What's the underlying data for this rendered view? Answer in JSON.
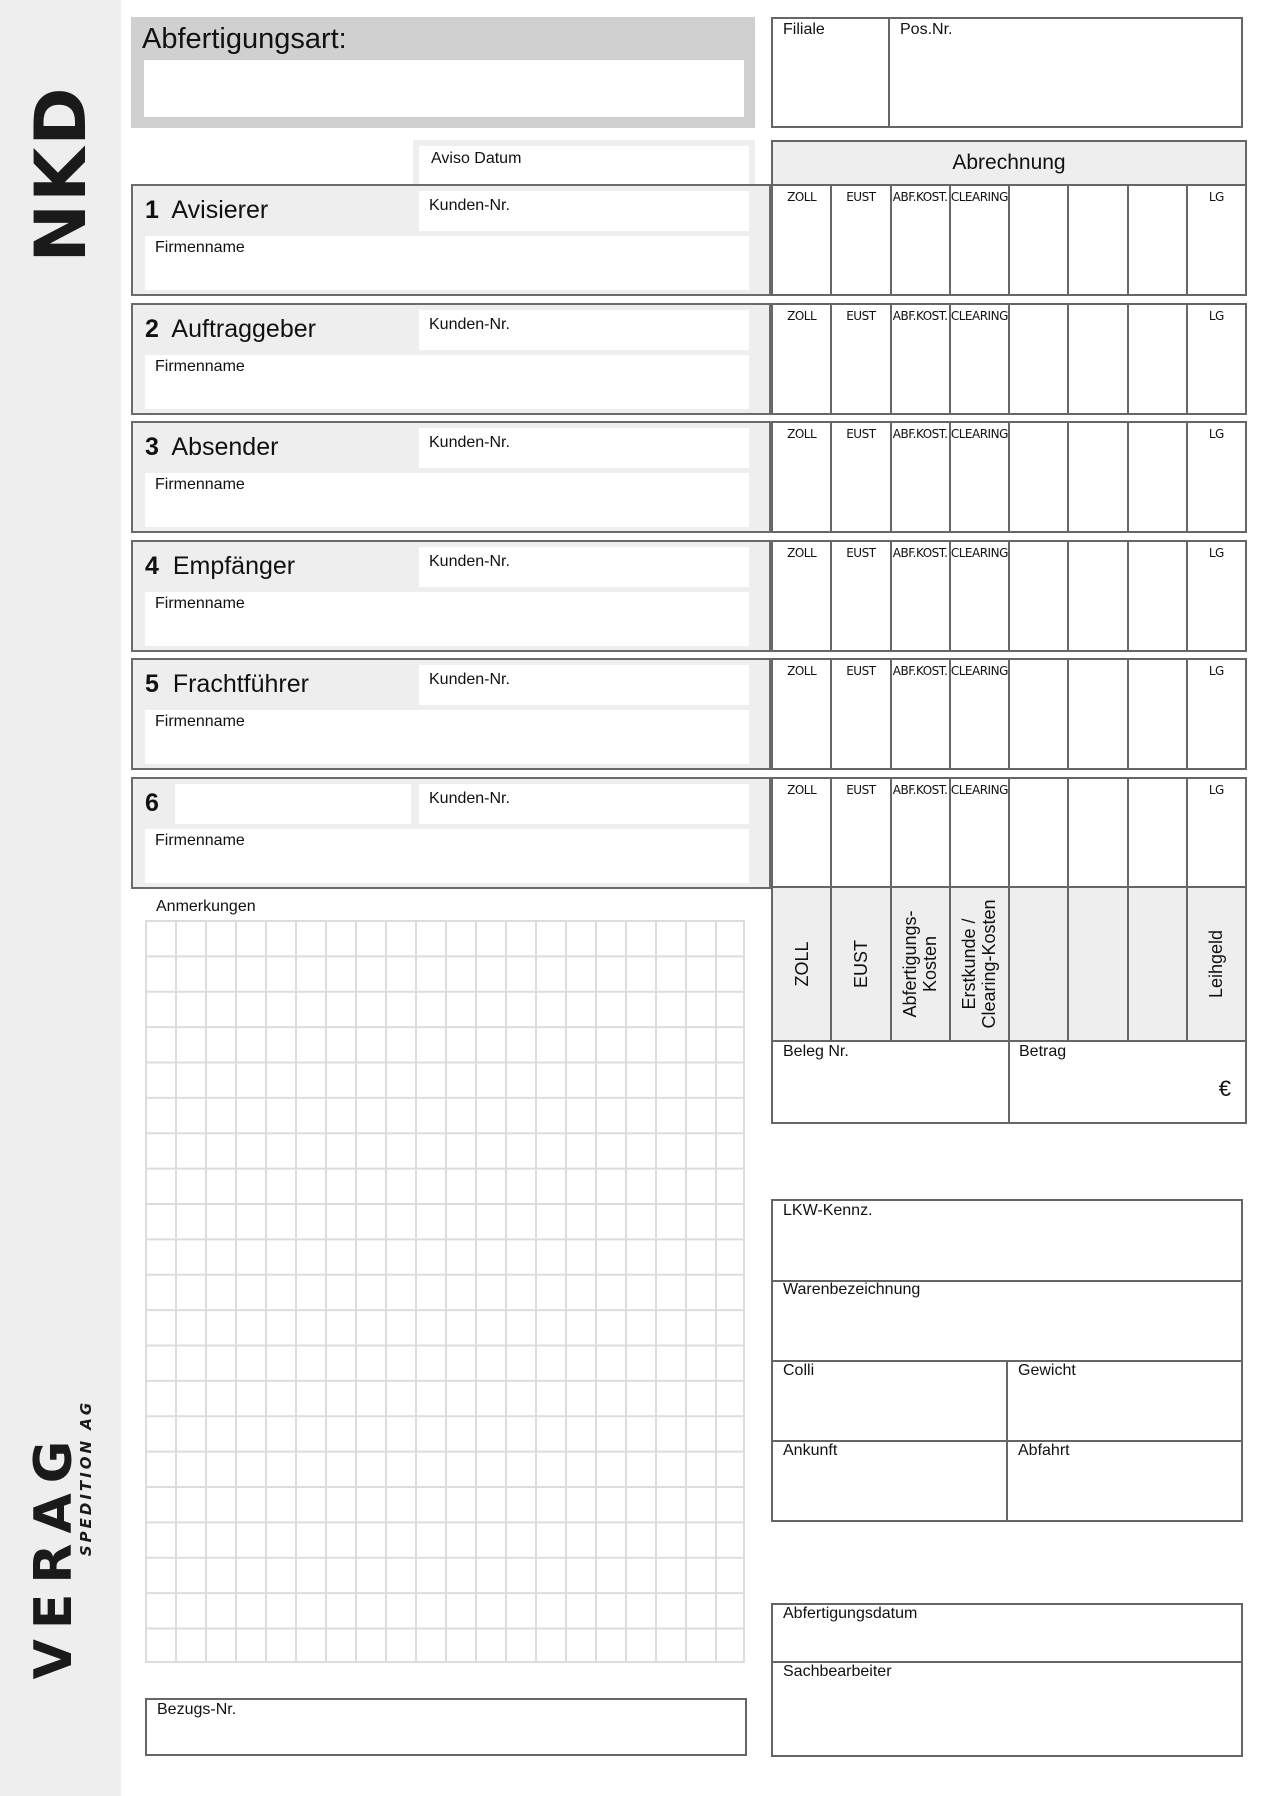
{
  "branding": {
    "nkd_logo": "NKD",
    "verag_logo": "VERAG",
    "verag_sub": "SPEDITION AG"
  },
  "header": {
    "abfertigungsart_label": "Abfertigungsart:",
    "abfertigungsart_value": "",
    "filiale_label": "Filiale",
    "posnr_label": "Pos.Nr.",
    "aviso_label": "Aviso Datum"
  },
  "abrechnung": {
    "title": "Abrechnung",
    "row_labels": [
      "ZOLL",
      "EUST",
      "ABF.KOST.",
      "CLEARING",
      "",
      "",
      "",
      "LG"
    ],
    "vertical_labels": [
      "ZOLL",
      "EUST",
      "Abfertigungs-\nKosten",
      "Erstkunde /\nClearing-Kosten",
      "",
      "",
      "",
      "Leihgeld"
    ],
    "beleg_label": "Beleg Nr.",
    "betrag_label": "Betrag",
    "currency": "€"
  },
  "sections": [
    {
      "num": "1",
      "name": "Avisierer",
      "kunden_label": "Kunden-Nr.",
      "firma_label": "Firmenname"
    },
    {
      "num": "2",
      "name": "Auftraggeber",
      "kunden_label": "Kunden-Nr.",
      "firma_label": "Firmenname"
    },
    {
      "num": "3",
      "name": "Absender",
      "kunden_label": "Kunden-Nr.",
      "firma_label": "Firmenname"
    },
    {
      "num": "4",
      "name": "Empfänger",
      "kunden_label": "Kunden-Nr.",
      "firma_label": "Firmenname"
    },
    {
      "num": "5",
      "name": "Frachtführer",
      "kunden_label": "Kunden-Nr.",
      "firma_label": "Firmenname"
    },
    {
      "num": "6",
      "name": "",
      "kunden_label": "Kunden-Nr.",
      "firma_label": "Firmenname"
    }
  ],
  "notes": {
    "label": "Anmerkungen",
    "bezug_label": "Bezugs-Nr."
  },
  "transport": {
    "lkw_label": "LKW-Kennz.",
    "ware_label": "Warenbezeichnung",
    "colli_label": "Colli",
    "gewicht_label": "Gewicht",
    "ankunft_label": "Ankunft",
    "abfahrt_label": "Abfahrt"
  },
  "footer": {
    "datum_label": "Abfertigungsdatum",
    "bearbeiter_label": "Sachbearbeiter"
  }
}
